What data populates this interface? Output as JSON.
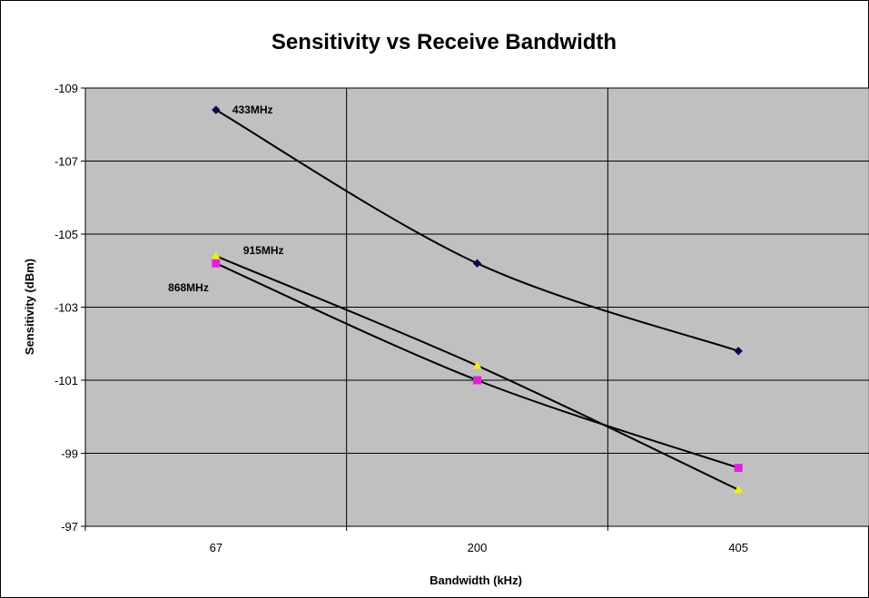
{
  "chart_data": {
    "type": "line",
    "title": "Sensitivity vs Receive Bandwidth",
    "xlabel": "Bandwidth (kHz)",
    "ylabel": "Sensitivity (dBm)",
    "categories": [
      "67",
      "200",
      "405"
    ],
    "y_ticks": [
      -109,
      -107,
      -105,
      -103,
      -101,
      -99,
      -97
    ],
    "ylim": [
      -109,
      -97
    ],
    "y_axis_reversed": true,
    "grid": true,
    "series": [
      {
        "name": "433MHz",
        "values": [
          -108.4,
          -104.2,
          -101.8
        ],
        "color": "#0a0a50",
        "marker": "diamond"
      },
      {
        "name": "915MHz",
        "values": [
          -104.4,
          -101.4,
          -98.0
        ],
        "color": "#f2f200",
        "marker": "triangle"
      },
      {
        "name": "868MHz",
        "values": [
          -104.2,
          -101.0,
          -98.6
        ],
        "color": "#e020e0",
        "marker": "square"
      }
    ],
    "plot_background": "#c0c0c0"
  }
}
